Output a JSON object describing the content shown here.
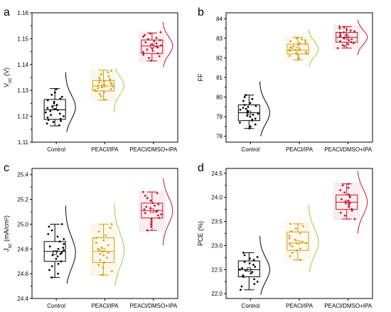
{
  "figure": {
    "colors": {
      "control": "#000000",
      "peacl_ipa": "#d4a017",
      "peacl_dmso_ipa": "#c0152f",
      "peacl_ipa_curve": "#9acd32"
    }
  },
  "chart_data": [
    {
      "type": "box",
      "panel_label": "a",
      "ylabel": "Voc (V)",
      "ylabel_main": "V",
      "ylabel_sub": "oc",
      "ylabel_unit": " (V)",
      "ylim": [
        1.11,
        1.16
      ],
      "yticks": [
        1.11,
        1.12,
        1.13,
        1.14,
        1.15,
        1.16
      ],
      "yticklabels": [
        "1.11",
        "1.12",
        "1.13",
        "1.14",
        "1.15",
        "1.16"
      ],
      "categories": [
        "Control",
        "PEACl/IPA",
        "PEACl/DMSO+IPA"
      ],
      "boxes": [
        {
          "q1": 1.1188,
          "median": 1.1225,
          "q3": 1.1265,
          "mean": 1.1235,
          "whisker_low": 1.1163,
          "whisker_high": 1.1307,
          "curve_low": 1.114,
          "curve_high": 1.137
        },
        {
          "q1": 1.1298,
          "median": 1.1317,
          "q3": 1.1338,
          "mean": 1.1318,
          "whisker_low": 1.1263,
          "whisker_high": 1.1378,
          "curve_low": 1.1215,
          "curve_high": 1.1385
        },
        {
          "q1": 1.1443,
          "median": 1.1472,
          "q3": 1.1495,
          "mean": 1.1472,
          "whisker_low": 1.1414,
          "whisker_high": 1.1522,
          "curve_low": 1.139,
          "curve_high": 1.1565
        }
      ],
      "points": [
        [
          1.1165,
          1.1172,
          1.1178,
          1.1182,
          1.1186,
          1.119,
          1.1195,
          1.12,
          1.1205,
          1.121,
          1.1215,
          1.122,
          1.1224,
          1.1228,
          1.1232,
          1.1238,
          1.1244,
          1.125,
          1.1256,
          1.1262,
          1.1268,
          1.1275,
          1.1283,
          1.1292,
          1.1305
        ],
        [
          1.1265,
          1.1278,
          1.1286,
          1.1292,
          1.1297,
          1.1301,
          1.1305,
          1.1309,
          1.1313,
          1.1316,
          1.1319,
          1.1322,
          1.1325,
          1.1328,
          1.1331,
          1.1334,
          1.1337,
          1.134,
          1.1344,
          1.1349,
          1.1355,
          1.1362,
          1.137,
          1.1376
        ],
        [
          1.1415,
          1.1425,
          1.1432,
          1.1438,
          1.1443,
          1.1448,
          1.1453,
          1.1458,
          1.1462,
          1.1466,
          1.147,
          1.1474,
          1.1478,
          1.1482,
          1.1486,
          1.149,
          1.1494,
          1.1498,
          1.1503,
          1.1508,
          1.1514,
          1.152,
          1.1525
        ]
      ]
    },
    {
      "type": "box",
      "panel_label": "b",
      "ylabel": "FF",
      "ylabel_main": "FF",
      "ylabel_sub": "",
      "ylabel_unit": "",
      "ylim": [
        77.7,
        84.3
      ],
      "yticks": [
        78,
        79,
        80,
        81,
        82,
        83,
        84
      ],
      "yticklabels": [
        "78",
        "79",
        "80",
        "81",
        "82",
        "83",
        "84"
      ],
      "categories": [
        "Control",
        "PEACl/IPA",
        "PEACl/DMSO+IPA"
      ],
      "boxes": [
        {
          "q1": 78.8,
          "median": 79.2,
          "q3": 79.6,
          "mean": 79.2,
          "whisker_low": 78.4,
          "whisker_high": 80.1,
          "curve_low": 78.0,
          "curve_high": 80.8
        },
        {
          "q1": 82.2,
          "median": 82.4,
          "q3": 82.7,
          "mean": 82.45,
          "whisker_low": 81.9,
          "whisker_high": 83.05,
          "curve_low": 81.55,
          "curve_high": 83.45
        },
        {
          "q1": 82.8,
          "median": 83.05,
          "q3": 83.3,
          "mean": 83.05,
          "whisker_low": 82.5,
          "whisker_high": 83.6,
          "curve_low": 82.15,
          "curve_high": 83.95
        }
      ],
      "points": [
        [
          78.4,
          78.5,
          78.6,
          78.7,
          78.8,
          78.85,
          78.9,
          79.0,
          79.05,
          79.1,
          79.15,
          79.2,
          79.25,
          79.3,
          79.35,
          79.4,
          79.45,
          79.5,
          79.55,
          79.6,
          79.7,
          79.8,
          79.9,
          80.0,
          80.1
        ],
        [
          81.9,
          82.0,
          82.1,
          82.15,
          82.2,
          82.25,
          82.3,
          82.35,
          82.4,
          82.42,
          82.45,
          82.5,
          82.55,
          82.6,
          82.65,
          82.7,
          82.75,
          82.8,
          82.85,
          82.9,
          82.95,
          83.0
        ],
        [
          82.5,
          82.6,
          82.65,
          82.7,
          82.75,
          82.8,
          82.85,
          82.9,
          82.95,
          83.0,
          83.05,
          83.1,
          83.15,
          83.2,
          83.25,
          83.3,
          83.35,
          83.4,
          83.45,
          83.5,
          83.55,
          83.6
        ]
      ]
    },
    {
      "type": "box",
      "panel_label": "c",
      "ylabel": "Jsc (mA/cm2)",
      "ylabel_main": "J",
      "ylabel_sub": "sc",
      "ylabel_unit": " (mA/cm²)",
      "ylim": [
        24.4,
        25.45
      ],
      "yticks": [
        24.4,
        24.6,
        24.8,
        25.0,
        25.2,
        25.4
      ],
      "yticklabels": [
        "24.4",
        "24.6",
        "24.8",
        "25.0",
        "25.2",
        "25.4"
      ],
      "categories": [
        "Control",
        "PEACl/IPA",
        "PEACl/DMSO+IPA"
      ],
      "boxes": [
        {
          "q1": 24.7,
          "median": 24.78,
          "q3": 24.86,
          "mean": 24.77,
          "whisker_low": 24.57,
          "whisker_high": 25.0,
          "curve_low": 24.52,
          "curve_high": 25.15
        },
        {
          "q1": 24.69,
          "median": 24.78,
          "q3": 24.89,
          "mean": 24.79,
          "whisker_low": 24.59,
          "whisker_high": 25.0,
          "curve_low": 24.5,
          "curve_high": 25.17
        },
        {
          "q1": 25.05,
          "median": 25.11,
          "q3": 25.17,
          "mean": 25.11,
          "whisker_low": 24.95,
          "whisker_high": 25.26,
          "curve_low": 24.83,
          "curve_high": 25.37
        }
      ],
      "points": [
        [
          24.57,
          24.6,
          24.63,
          24.66,
          24.68,
          24.7,
          24.72,
          24.74,
          24.75,
          24.76,
          24.77,
          24.78,
          24.79,
          24.8,
          24.81,
          24.82,
          24.84,
          24.86,
          24.88,
          24.9,
          24.92,
          24.95,
          24.98,
          25.0
        ],
        [
          24.59,
          24.62,
          24.65,
          24.67,
          24.69,
          24.71,
          24.73,
          24.75,
          24.76,
          24.77,
          24.78,
          24.79,
          24.8,
          24.81,
          24.83,
          24.85,
          24.87,
          24.89,
          24.91,
          24.94,
          24.97,
          25.0
        ],
        [
          24.95,
          24.98,
          25.0,
          25.02,
          25.04,
          25.05,
          25.07,
          25.08,
          25.09,
          25.1,
          25.11,
          25.12,
          25.13,
          25.14,
          25.15,
          25.16,
          25.17,
          25.19,
          25.21,
          25.23,
          25.25,
          25.26
        ]
      ]
    },
    {
      "type": "box",
      "panel_label": "d",
      "ylabel": "PCE (%)",
      "ylabel_main": "PCE (%)",
      "ylabel_sub": "",
      "ylabel_unit": "",
      "ylim": [
        21.9,
        24.6
      ],
      "yticks": [
        22.0,
        22.5,
        23.0,
        23.5,
        24.0,
        24.5
      ],
      "yticklabels": [
        "22.0",
        "22.5",
        "23.0",
        "23.5",
        "24.0",
        "24.5"
      ],
      "categories": [
        "Control",
        "PEACl/IPA",
        "PEACl/DMSO+IPA"
      ],
      "boxes": [
        {
          "q1": 22.35,
          "median": 22.5,
          "q3": 22.68,
          "mean": 22.5,
          "whisker_low": 22.08,
          "whisker_high": 22.85,
          "curve_low": 21.98,
          "curve_high": 23.2
        },
        {
          "q1": 22.9,
          "median": 23.05,
          "q3": 23.28,
          "mean": 23.07,
          "whisker_low": 22.7,
          "whisker_high": 23.45,
          "curve_low": 22.45,
          "curve_high": 23.85
        },
        {
          "q1": 23.75,
          "median": 23.9,
          "q3": 24.05,
          "mean": 23.9,
          "whisker_low": 23.55,
          "whisker_high": 24.28,
          "curve_low": 23.25,
          "curve_high": 24.55
        }
      ],
      "points": [
        [
          22.08,
          22.15,
          22.2,
          22.25,
          22.3,
          22.35,
          22.38,
          22.42,
          22.45,
          22.48,
          22.5,
          22.53,
          22.56,
          22.6,
          22.63,
          22.66,
          22.7,
          22.73,
          22.76,
          22.8,
          22.85
        ],
        [
          22.7,
          22.78,
          22.85,
          22.9,
          22.94,
          22.98,
          23.02,
          23.05,
          23.08,
          23.12,
          23.15,
          23.2,
          23.25,
          23.3,
          23.35,
          23.4,
          23.45
        ],
        [
          23.55,
          23.62,
          23.68,
          23.72,
          23.76,
          23.8,
          23.84,
          23.88,
          23.9,
          23.93,
          23.96,
          24.0,
          24.03,
          24.06,
          24.1,
          24.15,
          24.2,
          24.25,
          24.28
        ]
      ]
    }
  ]
}
